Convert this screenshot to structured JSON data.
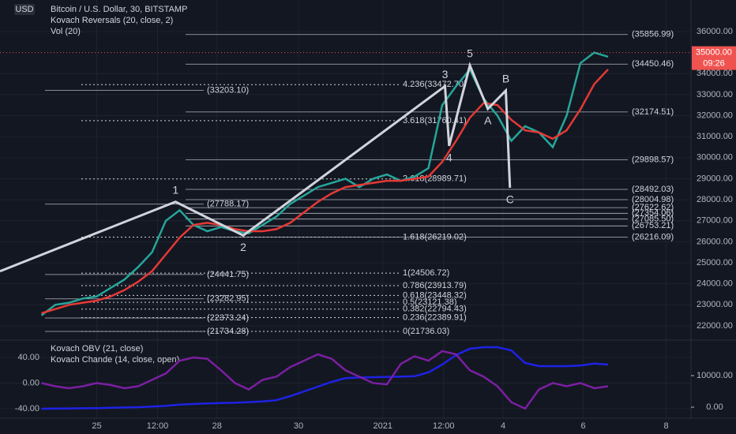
{
  "chart_data": [
    {
      "type": "line",
      "title": "Bitcoin / U.S. Dollar, 30, BITSTAMP",
      "indicators": [
        "Kovach Reversals (20, close, 2)",
        "Vol (20)"
      ],
      "currency": "USD",
      "xlim": [
        -3,
        47
      ],
      "xticks": [
        {
          "value": 4,
          "label": "25"
        },
        {
          "value": 8.4,
          "label": "12:00"
        },
        {
          "value": 12.7,
          "label": "28"
        },
        {
          "value": 18.6,
          "label": "30"
        },
        {
          "value": 24.7,
          "label": "2021"
        },
        {
          "value": 29.1,
          "label": "12:00"
        },
        {
          "value": 33.4,
          "label": "4"
        },
        {
          "value": 39.2,
          "label": "6"
        },
        {
          "value": 45.2,
          "label": "8"
        }
      ],
      "ylim": [
        21360,
        37500
      ],
      "yticks": [
        {
          "value": 22000,
          "label": "22000.00"
        },
        {
          "value": 23000,
          "label": "23000.00"
        },
        {
          "value": 24000,
          "label": "24000.00"
        },
        {
          "value": 25000,
          "label": "25000.00"
        },
        {
          "value": 26000,
          "label": "26000.00"
        },
        {
          "value": 27000,
          "label": "27000.00"
        },
        {
          "value": 28000,
          "label": "28000.00"
        },
        {
          "value": 29000,
          "label": "29000.00"
        },
        {
          "value": 30000,
          "label": "30000.00"
        },
        {
          "value": 31000,
          "label": "31000.00"
        },
        {
          "value": 32000,
          "label": "32000.00"
        },
        {
          "value": 33000,
          "label": "33000.00"
        },
        {
          "value": 34000,
          "label": "34000.00"
        },
        {
          "value": 36000,
          "label": "36000.00"
        }
      ],
      "grid": true,
      "series": [
        {
          "color": "#26a69a",
          "values": [
            22500,
            23000,
            23100,
            23300,
            23400,
            23800,
            24200,
            24800,
            25500,
            27000,
            27500,
            26800,
            26500,
            26700,
            26500,
            26400,
            26800,
            27200,
            27800,
            28200,
            28600,
            28800,
            29000,
            28600,
            29000,
            29200,
            28900,
            29100,
            29500,
            32500,
            33400,
            34200,
            32800,
            32000,
            30800,
            31500,
            31200,
            30500,
            32000,
            34500,
            35000,
            34800
          ]
        },
        {
          "color": "#e53935",
          "values": [
            22600,
            22800,
            23000,
            23100,
            23200,
            23400,
            23700,
            24100,
            24600,
            25400,
            26200,
            26800,
            26900,
            26800,
            26600,
            26500,
            26500,
            26600,
            26900,
            27400,
            27900,
            28300,
            28600,
            28700,
            28800,
            28900,
            28900,
            29000,
            29100,
            29800,
            30800,
            31900,
            32600,
            32500,
            31800,
            31300,
            31200,
            30900,
            31300,
            32300,
            33500,
            34200
          ]
        }
      ],
      "last_price": {
        "value": 35000,
        "label": "35000.00"
      },
      "countdown": "09:26",
      "levels": [
        {
          "price": 35856.99,
          "label": "(35856.99)"
        },
        {
          "price": 34450.46,
          "label": "(34450.46)"
        },
        {
          "price": 32174.51,
          "label": "(32174.51)"
        },
        {
          "price": 29898.57,
          "label": "(29898.57)"
        },
        {
          "price": 28492.03,
          "label": "(28492.03)"
        },
        {
          "price": 28004.98,
          "label": "(28004.98)"
        },
        {
          "price": 27622.62,
          "label": "(27622.62)"
        },
        {
          "price": 27354.06,
          "label": "(27354.06)"
        },
        {
          "price": 27085.5,
          "label": "(27085.50)"
        },
        {
          "price": 26753.21,
          "label": "(26753.21)"
        },
        {
          "price": 26216.09,
          "label": "(26216.09)"
        }
      ],
      "fib_levels": [
        {
          "price": 33472.7,
          "label": "4.236(33472.70)"
        },
        {
          "price": 31760.41,
          "label": "3.618(31760.41)"
        },
        {
          "price": 28989.71,
          "label": "2.618(28989.71)"
        },
        {
          "price": 26219.02,
          "label": "1.618(26219.02)"
        },
        {
          "price": 24506.72,
          "label": "1(24506.72)"
        },
        {
          "price": 23913.79,
          "label": "0.786(23913.79)"
        },
        {
          "price": 23448.32,
          "label": "0.618(23448.32)"
        },
        {
          "price": 23121.38,
          "label": "0.5(23121.38)"
        },
        {
          "price": 22794.43,
          "label": "0.382(22794.43)"
        },
        {
          "price": 22389.91,
          "label": "0.236(22389.91)"
        },
        {
          "price": 21736.03,
          "label": "0(21736.03)"
        }
      ],
      "left_levels": [
        {
          "price": 33203.1,
          "label": "(33203.10)"
        },
        {
          "price": 27788.17,
          "label": "(27788.17)"
        },
        {
          "price": 24441.75,
          "label": "(24441.75)"
        },
        {
          "price": 23282.95,
          "label": "(23282.95)"
        },
        {
          "price": 22373.24,
          "label": "(22373.24)"
        },
        {
          "price": 21734.28,
          "label": "(21734.28)"
        }
      ],
      "waves": {
        "x": [
          -3,
          9.7,
          14.6,
          29.2,
          29.5,
          31,
          32.3,
          33.6,
          33.9
        ],
        "values": [
          24600,
          27900,
          26300,
          33400,
          30560,
          34390,
          32320,
          33190,
          28570
        ],
        "labels": [
          null,
          "1",
          "2",
          "3",
          "4",
          "5",
          "A",
          "B",
          "C"
        ]
      }
    },
    {
      "type": "line",
      "xlim": [
        -3,
        47
      ],
      "ylim": [
        -55,
        66
      ],
      "yticks": [
        {
          "value": 40,
          "label": "40.00"
        },
        {
          "value": 0,
          "label": "0.00"
        },
        {
          "value": -40,
          "label": "-40.00"
        }
      ],
      "y2lim": [
        -3500,
        21000
      ],
      "y2ticks": [
        {
          "value": 10000,
          "label": "10000.00"
        },
        {
          "value": 0,
          "label": "0.00"
        }
      ],
      "series": [
        {
          "name": "Kovach OBV (21, close)",
          "color": "#1e22e6",
          "axis": "y2",
          "values": [
            -500,
            -450,
            -400,
            -350,
            -300,
            -200,
            -100,
            0,
            200,
            400,
            800,
            1000,
            1200,
            1300,
            1400,
            1600,
            1800,
            2200,
            3500,
            5000,
            6500,
            8000,
            9200,
            9400,
            9500,
            9600,
            9700,
            9800,
            11000,
            13500,
            16500,
            18500,
            19000,
            19000,
            18000,
            14000,
            13000,
            13000,
            13000,
            13200,
            13800,
            13500
          ]
        },
        {
          "name": "Kovach Chande (14, close, open)",
          "color": "#7b1fa2",
          "values": [
            0,
            -5,
            -8,
            -5,
            0,
            -3,
            -8,
            -5,
            5,
            15,
            35,
            40,
            38,
            20,
            0,
            -10,
            5,
            10,
            25,
            35,
            45,
            38,
            20,
            10,
            0,
            -2,
            30,
            42,
            35,
            50,
            45,
            20,
            10,
            -5,
            -30,
            -40,
            -10,
            0,
            -5,
            0,
            -8,
            -5
          ]
        }
      ]
    }
  ]
}
